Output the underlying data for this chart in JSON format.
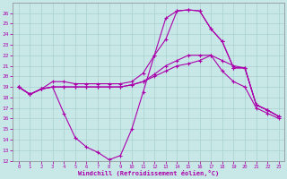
{
  "background_color": "#c8e8e8",
  "grid_color": "#a8d0d0",
  "line_color": "#aa00aa",
  "xlabel": "Windchill (Refroidissement éolien,°C)",
  "xlim": [
    -0.5,
    23.5
  ],
  "ylim": [
    12,
    27
  ],
  "xticks": [
    0,
    1,
    2,
    3,
    4,
    5,
    6,
    7,
    8,
    9,
    10,
    11,
    12,
    13,
    14,
    15,
    16,
    17,
    18,
    19,
    20,
    21,
    22,
    23
  ],
  "yticks": [
    12,
    13,
    14,
    15,
    16,
    17,
    18,
    19,
    20,
    21,
    22,
    23,
    24,
    25,
    26
  ],
  "series": [
    {
      "x": [
        0,
        1,
        2,
        3,
        4,
        5,
        6,
        7,
        8,
        9,
        10,
        11,
        12,
        13,
        14,
        15,
        16,
        17,
        18,
        19,
        20,
        21,
        22,
        23
      ],
      "y": [
        19,
        18.3,
        18.8,
        19,
        16.5,
        14.2,
        13.3,
        12.8,
        12.1,
        12.5,
        15.0,
        18.5,
        22.0,
        25.5,
        26.2,
        26.3,
        26.2,
        24.5,
        23.3,
        20.8,
        20.8,
        17.3,
        16.8,
        16.2
      ]
    },
    {
      "x": [
        0,
        1,
        2,
        3,
        4,
        5,
        6,
        7,
        8,
        9,
        10,
        11,
        12,
        13,
        14,
        15,
        16,
        17,
        18,
        19,
        20,
        21,
        22,
        23
      ],
      "y": [
        19,
        18.3,
        18.8,
        19.5,
        19.5,
        19.3,
        19.3,
        19.3,
        19.3,
        19.3,
        19.5,
        20.3,
        22.0,
        23.5,
        26.2,
        26.3,
        26.2,
        24.5,
        23.3,
        20.8,
        20.8,
        17.3,
        16.8,
        16.2
      ]
    },
    {
      "x": [
        0,
        1,
        2,
        3,
        4,
        5,
        6,
        7,
        8,
        9,
        10,
        11,
        12,
        13,
        14,
        15,
        16,
        17,
        18,
        19,
        20,
        21,
        22,
        23
      ],
      "y": [
        19,
        18.3,
        18.8,
        19.0,
        19.0,
        19.0,
        19.0,
        19.0,
        19.0,
        19.0,
        19.2,
        19.5,
        20.2,
        21.0,
        21.5,
        22.0,
        22.0,
        22.0,
        21.5,
        21.0,
        20.8,
        17.3,
        16.8,
        16.2
      ]
    },
    {
      "x": [
        0,
        1,
        2,
        3,
        4,
        5,
        6,
        7,
        8,
        9,
        10,
        11,
        12,
        13,
        14,
        15,
        16,
        17,
        18,
        19,
        20,
        21,
        22,
        23
      ],
      "y": [
        19,
        18.3,
        18.8,
        19.0,
        19.0,
        19.0,
        19.0,
        19.0,
        19.0,
        19.0,
        19.2,
        19.5,
        20.0,
        20.5,
        21.0,
        21.2,
        21.5,
        22.0,
        20.5,
        19.5,
        19.0,
        17.0,
        16.5,
        16.0
      ]
    }
  ]
}
